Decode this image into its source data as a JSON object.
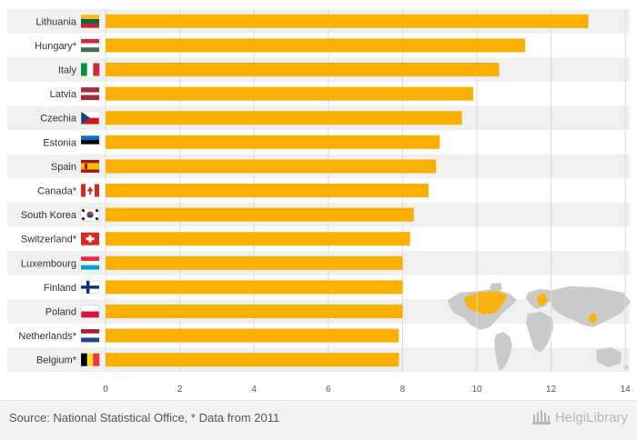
{
  "chart_data": {
    "type": "bar",
    "orientation": "horizontal",
    "categories": [
      "Lithuania",
      "Hungary*",
      "Italy",
      "Latvia",
      "Czechia",
      "Estonia",
      "Spain",
      "Canada*",
      "South Korea",
      "Switzerland*",
      "Luxembourg",
      "Finland",
      "Poland",
      "Netherlands*",
      "Belgium*"
    ],
    "values": [
      13.0,
      11.3,
      10.6,
      9.9,
      9.6,
      9.0,
      8.9,
      8.7,
      8.3,
      8.2,
      8.0,
      8.0,
      8.0,
      7.9,
      7.9
    ],
    "xlim": [
      0,
      14
    ],
    "ticks": [
      "0",
      "2",
      "4",
      "6",
      "8",
      "10",
      "12",
      "14"
    ],
    "grid": true,
    "bar_color": "#fbb000",
    "band_color": "#f0f0f0"
  },
  "flags": [
    {
      "name": "flag-lithuania",
      "type": "h",
      "colors": [
        "#fdb913",
        "#006a44",
        "#c1272d"
      ]
    },
    {
      "name": "flag-hungary",
      "type": "h",
      "colors": [
        "#cd2a3e",
        "#ffffff",
        "#436f4d"
      ]
    },
    {
      "name": "flag-italy",
      "type": "v",
      "colors": [
        "#009246",
        "#ffffff",
        "#ce2b37"
      ]
    },
    {
      "name": "flag-latvia",
      "type": "latvia",
      "colors": [
        "#9e3039",
        "#ffffff"
      ]
    },
    {
      "name": "flag-czechia",
      "type": "czech",
      "colors": [
        "#ffffff",
        "#d7141a",
        "#11457e"
      ]
    },
    {
      "name": "flag-estonia",
      "type": "h",
      "colors": [
        "#0072ce",
        "#000000",
        "#ffffff"
      ]
    },
    {
      "name": "flag-spain",
      "type": "spain",
      "colors": [
        "#aa151b",
        "#f1bf00"
      ]
    },
    {
      "name": "flag-canada",
      "type": "canada",
      "colors": [
        "#d52b1e",
        "#ffffff"
      ]
    },
    {
      "name": "flag-south-korea",
      "type": "korea",
      "colors": [
        "#ffffff",
        "#cd2e3a",
        "#0047a0",
        "#000000"
      ]
    },
    {
      "name": "flag-switzerland",
      "type": "swiss",
      "colors": [
        "#da291c",
        "#ffffff"
      ]
    },
    {
      "name": "flag-luxembourg",
      "type": "h",
      "colors": [
        "#ed2939",
        "#ffffff",
        "#00a1de"
      ]
    },
    {
      "name": "flag-finland",
      "type": "nordic",
      "colors": [
        "#ffffff",
        "#003580"
      ]
    },
    {
      "name": "flag-poland",
      "type": "h2",
      "colors": [
        "#ffffff",
        "#dc143c"
      ]
    },
    {
      "name": "flag-netherlands",
      "type": "h",
      "colors": [
        "#ae1c28",
        "#ffffff",
        "#21468b"
      ]
    },
    {
      "name": "flag-belgium",
      "type": "v",
      "colors": [
        "#000000",
        "#fdda24",
        "#ef3340"
      ]
    }
  ],
  "map": {
    "land_color": "#c8c8c8",
    "highlight_color": "#fbb000"
  },
  "footer": {
    "source": "Source: National Statistical Office, * Data from 2011",
    "brand": "HelgiLibrary"
  }
}
